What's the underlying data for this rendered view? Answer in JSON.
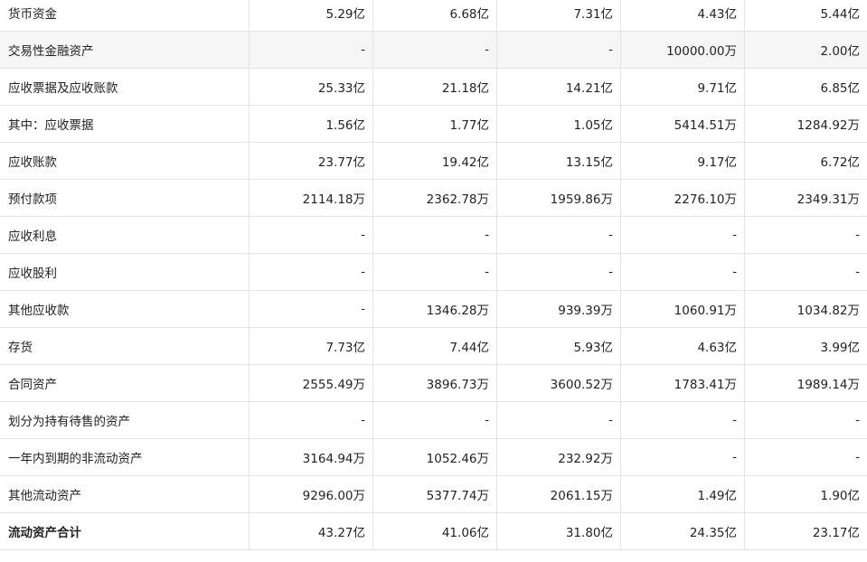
{
  "rows": [
    {
      "label": "货币资金",
      "values": [
        "5.29亿",
        "6.68亿",
        "7.31亿",
        "4.43亿",
        "5.44亿"
      ]
    },
    {
      "label": "交易性金融资产",
      "values": [
        "-",
        "-",
        "-",
        "10000.00万",
        "2.00亿"
      ]
    },
    {
      "label": "应收票据及应收账款",
      "values": [
        "25.33亿",
        "21.18亿",
        "14.21亿",
        "9.71亿",
        "6.85亿"
      ]
    },
    {
      "label": "其中：应收票据",
      "values": [
        "1.56亿",
        "1.77亿",
        "1.05亿",
        "5414.51万",
        "1284.92万"
      ]
    },
    {
      "label": "应收账款",
      "values": [
        "23.77亿",
        "19.42亿",
        "13.15亿",
        "9.17亿",
        "6.72亿"
      ]
    },
    {
      "label": "预付款项",
      "values": [
        "2114.18万",
        "2362.78万",
        "1959.86万",
        "2276.10万",
        "2349.31万"
      ]
    },
    {
      "label": "应收利息",
      "values": [
        "-",
        "-",
        "-",
        "-",
        "-"
      ]
    },
    {
      "label": "应收股利",
      "values": [
        "-",
        "-",
        "-",
        "-",
        "-"
      ]
    },
    {
      "label": "其他应收款",
      "values": [
        "-",
        "1346.28万",
        "939.39万",
        "1060.91万",
        "1034.82万"
      ]
    },
    {
      "label": "存货",
      "values": [
        "7.73亿",
        "7.44亿",
        "5.93亿",
        "4.63亿",
        "3.99亿"
      ]
    },
    {
      "label": "合同资产",
      "values": [
        "2555.49万",
        "3896.73万",
        "3600.52万",
        "1783.41万",
        "1989.14万"
      ]
    },
    {
      "label": "划分为持有待售的资产",
      "values": [
        "-",
        "-",
        "-",
        "-",
        "-"
      ]
    },
    {
      "label": "一年内到期的非流动资产",
      "values": [
        "3164.94万",
        "1052.46万",
        "232.92万",
        "-",
        "-"
      ]
    },
    {
      "label": "其他流动资产",
      "values": [
        "9296.00万",
        "5377.74万",
        "2061.15万",
        "1.49亿",
        "1.90亿"
      ]
    },
    {
      "label": "流动资产合计",
      "values": [
        "43.27亿",
        "41.06亿",
        "31.80亿",
        "24.35亿",
        "23.17亿"
      ]
    }
  ],
  "highlight_row_color": "#f5f5f5",
  "border_color": "#e4e4e4"
}
